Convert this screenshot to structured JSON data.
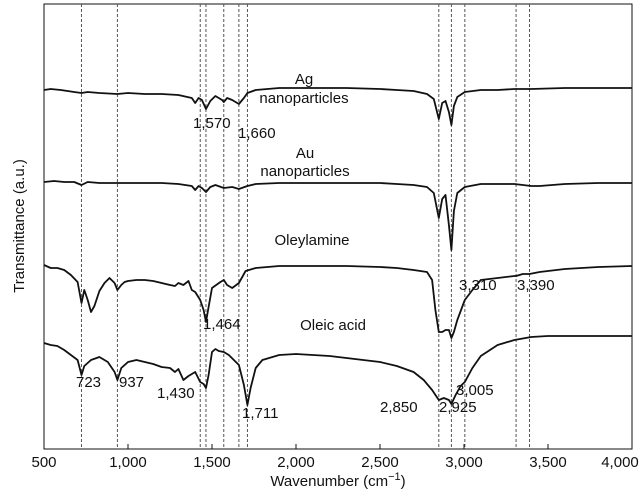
{
  "chart_data": {
    "type": "line",
    "xlabel": "Wavenumber (cm⁻¹)",
    "ylabel": "Transmittance (a.u.)",
    "xlim": [
      500,
      4000
    ],
    "x_ticks": [
      500,
      1000,
      1500,
      2000,
      2500,
      3000,
      3500,
      4000
    ],
    "x_tick_labels": [
      "500",
      "1,000",
      "1,500",
      "2,000",
      "2,500",
      "3,000",
      "3,500",
      "4,000"
    ],
    "y_ticks": false,
    "grid": false,
    "reference_lines": [
      723,
      937,
      1430,
      1464,
      1570,
      1660,
      1711,
      2850,
      2925,
      3005,
      3310,
      3390
    ],
    "series": [
      {
        "name": "Ag\nnanoparticles",
        "points": [
          [
            500,
            90
          ],
          [
            540,
            89
          ],
          [
            600,
            90
          ],
          [
            680,
            92
          ],
          [
            723,
            93
          ],
          [
            760,
            92
          ],
          [
            830,
            93
          ],
          [
            937,
            94
          ],
          [
            1000,
            93
          ],
          [
            1100,
            94
          ],
          [
            1200,
            94
          ],
          [
            1300,
            95
          ],
          [
            1380,
            98
          ],
          [
            1400,
            103
          ],
          [
            1420,
            98
          ],
          [
            1440,
            100
          ],
          [
            1464,
            109
          ],
          [
            1490,
            101
          ],
          [
            1520,
            96
          ],
          [
            1560,
            100
          ],
          [
            1570,
            102
          ],
          [
            1590,
            98
          ],
          [
            1620,
            100
          ],
          [
            1660,
            104
          ],
          [
            1690,
            98
          ],
          [
            1711,
            93
          ],
          [
            1760,
            90
          ],
          [
            1900,
            88
          ],
          [
            2100,
            88
          ],
          [
            2300,
            88
          ],
          [
            2500,
            89
          ],
          [
            2600,
            90
          ],
          [
            2700,
            91
          ],
          [
            2780,
            94
          ],
          [
            2820,
            99
          ],
          [
            2850,
            119
          ],
          [
            2870,
            103
          ],
          [
            2890,
            101
          ],
          [
            2910,
            112
          ],
          [
            2925,
            125
          ],
          [
            2940,
            106
          ],
          [
            2960,
            97
          ],
          [
            3005,
            92
          ],
          [
            3100,
            90
          ],
          [
            3200,
            90
          ],
          [
            3300,
            89
          ],
          [
            3400,
            89
          ],
          [
            3600,
            88
          ],
          [
            3800,
            88
          ],
          [
            4000,
            88
          ]
        ]
      },
      {
        "name": "Au\nnanoparticles",
        "points": [
          [
            500,
            182
          ],
          [
            560,
            181
          ],
          [
            620,
            182
          ],
          [
            680,
            182
          ],
          [
            723,
            185
          ],
          [
            760,
            182
          ],
          [
            830,
            183
          ],
          [
            937,
            183
          ],
          [
            1000,
            183
          ],
          [
            1100,
            183
          ],
          [
            1200,
            183
          ],
          [
            1300,
            184
          ],
          [
            1380,
            186
          ],
          [
            1400,
            190
          ],
          [
            1420,
            186
          ],
          [
            1440,
            188
          ],
          [
            1464,
            192
          ],
          [
            1490,
            187
          ],
          [
            1520,
            185
          ],
          [
            1570,
            188
          ],
          [
            1620,
            187
          ],
          [
            1660,
            189
          ],
          [
            1711,
            186
          ],
          [
            1760,
            184
          ],
          [
            1900,
            183
          ],
          [
            2100,
            183
          ],
          [
            2300,
            183
          ],
          [
            2500,
            183
          ],
          [
            2600,
            184
          ],
          [
            2700,
            185
          ],
          [
            2780,
            187
          ],
          [
            2820,
            193
          ],
          [
            2850,
            218
          ],
          [
            2870,
            199
          ],
          [
            2890,
            195
          ],
          [
            2910,
            225
          ],
          [
            2925,
            250
          ],
          [
            2940,
            211
          ],
          [
            2960,
            193
          ],
          [
            3005,
            187
          ],
          [
            3100,
            184
          ],
          [
            3200,
            184
          ],
          [
            3300,
            184
          ],
          [
            3400,
            186
          ],
          [
            3450,
            186
          ],
          [
            3600,
            184
          ],
          [
            3800,
            183
          ],
          [
            4000,
            183
          ]
        ]
      },
      {
        "name": "Oleylamine",
        "points": [
          [
            500,
            265
          ],
          [
            540,
            268
          ],
          [
            580,
            268
          ],
          [
            620,
            270
          ],
          [
            660,
            275
          ],
          [
            700,
            282
          ],
          [
            723,
            303
          ],
          [
            740,
            290
          ],
          [
            760,
            300
          ],
          [
            780,
            312
          ],
          [
            800,
            306
          ],
          [
            830,
            291
          ],
          [
            860,
            283
          ],
          [
            890,
            278
          ],
          [
            920,
            283
          ],
          [
            937,
            290
          ],
          [
            960,
            285
          ],
          [
            980,
            282
          ],
          [
            1000,
            281
          ],
          [
            1050,
            280
          ],
          [
            1100,
            280
          ],
          [
            1150,
            281
          ],
          [
            1200,
            283
          ],
          [
            1250,
            285
          ],
          [
            1280,
            286
          ],
          [
            1300,
            283
          ],
          [
            1330,
            285
          ],
          [
            1360,
            281
          ],
          [
            1380,
            290
          ],
          [
            1400,
            292
          ],
          [
            1430,
            300
          ],
          [
            1450,
            310
          ],
          [
            1464,
            322
          ],
          [
            1480,
            307
          ],
          [
            1500,
            288
          ],
          [
            1550,
            282
          ],
          [
            1570,
            280
          ],
          [
            1590,
            285
          ],
          [
            1620,
            288
          ],
          [
            1660,
            283
          ],
          [
            1700,
            271
          ],
          [
            1760,
            268
          ],
          [
            1900,
            266
          ],
          [
            2100,
            266
          ],
          [
            2300,
            266
          ],
          [
            2500,
            267
          ],
          [
            2600,
            268
          ],
          [
            2700,
            270
          ],
          [
            2780,
            272
          ],
          [
            2810,
            280
          ],
          [
            2830,
            310
          ],
          [
            2850,
            332
          ],
          [
            2870,
            332
          ],
          [
            2890,
            330
          ],
          [
            2910,
            330
          ],
          [
            2925,
            338
          ],
          [
            2940,
            332
          ],
          [
            2960,
            320
          ],
          [
            3005,
            300
          ],
          [
            3050,
            290
          ],
          [
            3100,
            280
          ],
          [
            3200,
            278
          ],
          [
            3300,
            276
          ],
          [
            3310,
            276
          ],
          [
            3350,
            274
          ],
          [
            3390,
            274
          ],
          [
            3450,
            272
          ],
          [
            3600,
            269
          ],
          [
            3800,
            267
          ],
          [
            4000,
            266
          ]
        ]
      },
      {
        "name": "Oleic acid",
        "points": [
          [
            500,
            343
          ],
          [
            540,
            345
          ],
          [
            580,
            346
          ],
          [
            620,
            350
          ],
          [
            660,
            355
          ],
          [
            700,
            360
          ],
          [
            723,
            375
          ],
          [
            740,
            366
          ],
          [
            780,
            360
          ],
          [
            830,
            357
          ],
          [
            880,
            362
          ],
          [
            920,
            372
          ],
          [
            937,
            380
          ],
          [
            960,
            368
          ],
          [
            1000,
            362
          ],
          [
            1050,
            360
          ],
          [
            1100,
            362
          ],
          [
            1150,
            364
          ],
          [
            1200,
            367
          ],
          [
            1250,
            368
          ],
          [
            1280,
            372
          ],
          [
            1300,
            369
          ],
          [
            1330,
            380
          ],
          [
            1360,
            376
          ],
          [
            1400,
            372
          ],
          [
            1430,
            382
          ],
          [
            1450,
            384
          ],
          [
            1464,
            388
          ],
          [
            1480,
            375
          ],
          [
            1500,
            352
          ],
          [
            1520,
            349
          ],
          [
            1540,
            351
          ],
          [
            1570,
            352
          ],
          [
            1600,
            355
          ],
          [
            1660,
            365
          ],
          [
            1690,
            385
          ],
          [
            1711,
            405
          ],
          [
            1730,
            388
          ],
          [
            1760,
            368
          ],
          [
            1800,
            360
          ],
          [
            1900,
            355
          ],
          [
            2000,
            354
          ],
          [
            2100,
            355
          ],
          [
            2200,
            356
          ],
          [
            2300,
            358
          ],
          [
            2400,
            360
          ],
          [
            2500,
            362
          ],
          [
            2600,
            366
          ],
          [
            2700,
            372
          ],
          [
            2760,
            380
          ],
          [
            2810,
            390
          ],
          [
            2850,
            400
          ],
          [
            2880,
            398
          ],
          [
            2910,
            400
          ],
          [
            2925,
            404
          ],
          [
            2950,
            395
          ],
          [
            2980,
            386
          ],
          [
            3005,
            382
          ],
          [
            3050,
            368
          ],
          [
            3100,
            356
          ],
          [
            3200,
            345
          ],
          [
            3300,
            340
          ],
          [
            3400,
            337
          ],
          [
            3500,
            336
          ],
          [
            3600,
            336
          ],
          [
            3800,
            336
          ],
          [
            4000,
            336
          ]
        ]
      }
    ],
    "annotations": [
      "1,570",
      "1,660",
      "1,464",
      "3,310",
      "3,390",
      "723",
      "937",
      "1,430",
      "1,711",
      "2,850",
      "2,925",
      "3,005"
    ]
  }
}
